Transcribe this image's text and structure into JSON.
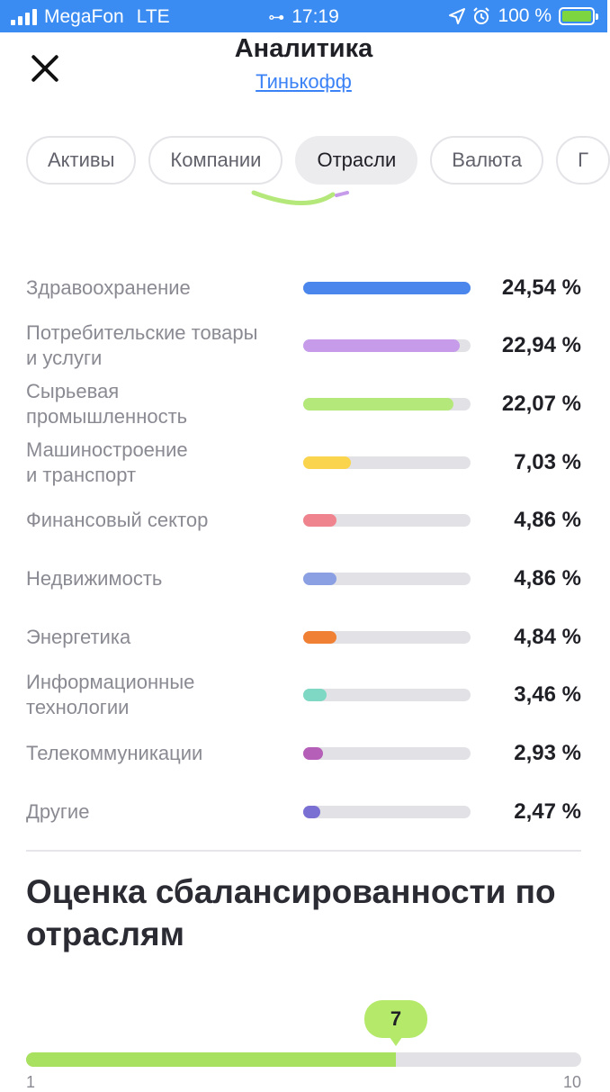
{
  "status_bar": {
    "carrier": "MegaFon",
    "network": "LTE",
    "time": "17:19",
    "battery": "100 %"
  },
  "header": {
    "title": "Аналитика",
    "subtitle": "Тинькофф"
  },
  "tabs": [
    {
      "label": "Активы",
      "active": false
    },
    {
      "label": "Компании",
      "active": false
    },
    {
      "label": "Отрасли",
      "active": true
    },
    {
      "label": "Валюта",
      "active": false
    },
    {
      "label": "Г",
      "active": false
    }
  ],
  "sectors": [
    {
      "label": "Здравоохранение",
      "value": "24,54 %",
      "percent": 24.54,
      "color": "#4a86ec"
    },
    {
      "label": "Потребительские товары\nи услуги",
      "value": "22,94 %",
      "percent": 22.94,
      "color": "#c69be9"
    },
    {
      "label": "Сырьевая\nпромышленность",
      "value": "22,07 %",
      "percent": 22.07,
      "color": "#b5e87a"
    },
    {
      "label": "Машиностроение\nи транспорт",
      "value": "7,03 %",
      "percent": 7.03,
      "color": "#fad44c"
    },
    {
      "label": "Финансовый сектор",
      "value": "4,86 %",
      "percent": 4.86,
      "color": "#f0848e"
    },
    {
      "label": "Недвижимость",
      "value": "4,86 %",
      "percent": 4.86,
      "color": "#8aa0e3"
    },
    {
      "label": "Энергетика",
      "value": "4,84 %",
      "percent": 4.84,
      "color": "#f08034"
    },
    {
      "label": "Информационные\nтехнологии",
      "value": "3,46 %",
      "percent": 3.46,
      "color": "#7fd8c3"
    },
    {
      "label": "Телекоммуникации",
      "value": "2,93 %",
      "percent": 2.93,
      "color": "#b55fb8"
    },
    {
      "label": "Другие",
      "value": "2,47 %",
      "percent": 2.47,
      "color": "#7a70d3"
    }
  ],
  "balance": {
    "title": "Оценка сбалансированности по отраслям",
    "score": "7",
    "score_value": 7,
    "scale_min": "1",
    "scale_max": "10",
    "color": "#a8e05f"
  }
}
